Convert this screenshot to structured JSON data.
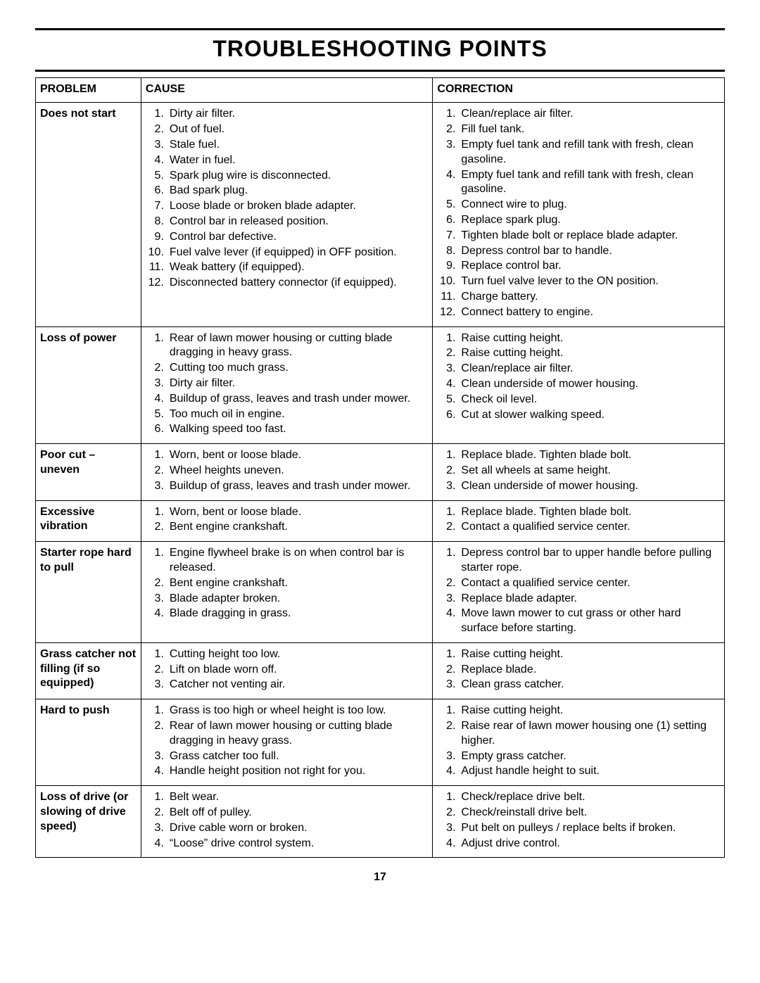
{
  "title": "TROUBLESHOOTING POINTS",
  "page_number": "17",
  "headers": {
    "problem": "PROBLEM",
    "cause": "CAUSE",
    "correction": "CORRECTION"
  },
  "rows": [
    {
      "problem": "Does not start",
      "causes": [
        "Dirty air filter.",
        "Out of fuel.",
        "Stale fuel.",
        "Water in fuel.",
        "Spark plug wire is disconnected.",
        "Bad spark plug.",
        "Loose blade or broken blade adapter.",
        "Control bar in released position.",
        "Control bar defective.",
        "Fuel valve lever (if equipped) in OFF position.",
        "Weak battery (if equipped).",
        "Disconnected battery connector (if equipped)."
      ],
      "corrections": [
        "Clean/replace air filter.",
        "Fill fuel tank.",
        "Empty fuel tank and refill tank with fresh, clean gasoline.",
        "Empty fuel tank and refill tank with fresh, clean gasoline.",
        "Connect wire to plug.",
        "Replace spark plug.",
        "Tighten blade bolt or replace blade adapter.",
        "Depress control bar to handle.",
        "Replace control bar.",
        "Turn fuel valve lever to the ON position.",
        "Charge battery.",
        "Connect battery to engine."
      ]
    },
    {
      "problem": "Loss of power",
      "causes": [
        "Rear of lawn mower housing or cutting blade dragging in heavy grass.",
        "Cutting too much grass.",
        "Dirty air filter.",
        "Buildup of grass, leaves and trash under mower.",
        "Too much oil in engine.",
        "Walking speed too fast."
      ],
      "corrections": [
        "Raise cutting height.",
        "Raise cutting height.",
        "Clean/replace air filter.",
        "Clean underside of mower housing.",
        "Check oil level.",
        "Cut at slower walking speed."
      ]
    },
    {
      "problem": "Poor cut – uneven",
      "causes": [
        "Worn, bent or loose blade.",
        "Wheel heights uneven.",
        "Buildup of grass, leaves and trash under mower."
      ],
      "corrections": [
        "Replace blade. Tighten blade bolt.",
        "Set all wheels at same height.",
        "Clean underside of mower housing."
      ]
    },
    {
      "problem": "Excessive vibration",
      "causes": [
        "Worn, bent or loose blade.",
        "Bent engine crankshaft."
      ],
      "corrections": [
        "Replace blade. Tighten blade bolt.",
        "Contact a qualified service center."
      ]
    },
    {
      "problem": "Starter rope hard to pull",
      "causes": [
        "Engine flywheel brake is on when control bar is released.",
        "Bent engine crankshaft.",
        "Blade adapter broken.",
        "Blade dragging in grass."
      ],
      "corrections": [
        "Depress control bar to upper handle before pulling starter rope.",
        "Contact a qualified service center.",
        "Replace blade adapter.",
        "Move lawn mower to cut grass or other hard surface before starting."
      ]
    },
    {
      "problem": "Grass catcher not filling (if so equipped)",
      "causes": [
        "Cutting height too low.",
        "Lift on blade worn off.",
        "Catcher not venting air."
      ],
      "corrections": [
        "Raise cutting height.",
        "Replace blade.",
        "Clean grass catcher."
      ]
    },
    {
      "problem": "Hard to push",
      "causes": [
        "Grass is too high or wheel height is too low.",
        "Rear of lawn mower housing or cutting blade dragging in heavy grass.",
        "Grass catcher too full.",
        "Handle height position not right for you."
      ],
      "corrections": [
        "Raise cutting height.",
        "Raise rear of lawn mower housing one (1) setting higher.",
        "Empty grass catcher.",
        "Adjust handle height to suit."
      ]
    },
    {
      "problem": "Loss of drive (or slowing of drive speed)",
      "causes": [
        "Belt wear.",
        "Belt off of pulley.",
        "Drive cable worn or broken.",
        "“Loose” drive control system."
      ],
      "corrections": [
        "Check/replace drive belt.",
        "Check/reinstall drive belt.",
        "Put belt on pulleys / replace belts if broken.",
        "Adjust drive control."
      ]
    }
  ]
}
